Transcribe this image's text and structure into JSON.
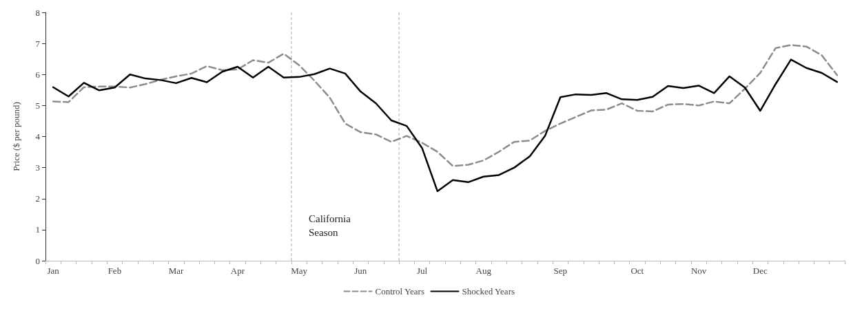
{
  "chart_data": {
    "type": "line",
    "ylabel": "Price ($ per pound)",
    "categories": [
      "Jan",
      null,
      null,
      null,
      "Feb",
      null,
      null,
      null,
      "Mar",
      null,
      null,
      null,
      "Apr",
      null,
      null,
      null,
      "May",
      null,
      null,
      null,
      "Jun",
      null,
      null,
      null,
      "Jul",
      null,
      null,
      null,
      "Aug",
      null,
      null,
      null,
      null,
      "Sep",
      null,
      null,
      null,
      null,
      "Oct",
      null,
      null,
      null,
      "Nov",
      null,
      null,
      null,
      "Dec",
      null,
      null,
      null,
      null,
      null
    ],
    "ylim": [
      0,
      8
    ],
    "yticks": [
      0,
      1,
      2,
      3,
      4,
      5,
      6,
      7,
      8
    ],
    "series": [
      {
        "name": "Control Years",
        "color": "#8c8c8c",
        "line_style": "dashed",
        "values": [
          5.13,
          5.11,
          5.59,
          5.61,
          5.61,
          5.58,
          5.69,
          5.83,
          5.94,
          6.03,
          6.27,
          6.14,
          6.16,
          6.46,
          6.38,
          6.67,
          6.3,
          5.8,
          5.25,
          4.42,
          4.14,
          4.07,
          3.83,
          4.02,
          3.8,
          3.51,
          3.05,
          3.09,
          3.23,
          3.51,
          3.83,
          3.87,
          4.18,
          4.42,
          4.63,
          4.84,
          4.87,
          5.07,
          4.83,
          4.81,
          5.03,
          5.05,
          5.0,
          5.13,
          5.07,
          5.54,
          6.05,
          6.85,
          6.95,
          6.9,
          6.62,
          5.98
        ]
      },
      {
        "name": "Shocked Years",
        "color": "#000000",
        "line_style": "solid",
        "values": [
          5.59,
          5.29,
          5.73,
          5.49,
          5.58,
          6.0,
          5.87,
          5.82,
          5.72,
          5.89,
          5.75,
          6.09,
          6.25,
          5.9,
          6.25,
          5.9,
          5.92,
          6.01,
          6.19,
          6.03,
          5.45,
          5.07,
          4.52,
          4.34,
          3.63,
          2.24,
          2.6,
          2.53,
          2.71,
          2.76,
          3.0,
          3.36,
          4.02,
          5.27,
          5.36,
          5.34,
          5.4,
          5.2,
          5.18,
          5.28,
          5.63,
          5.56,
          5.64,
          5.4,
          5.94,
          5.58,
          4.83,
          5.69,
          6.48,
          6.21,
          6.05,
          5.76
        ]
      }
    ],
    "annotations": [
      "California Season"
    ],
    "grid": false,
    "legend": "bottom",
    "marker": "none"
  }
}
